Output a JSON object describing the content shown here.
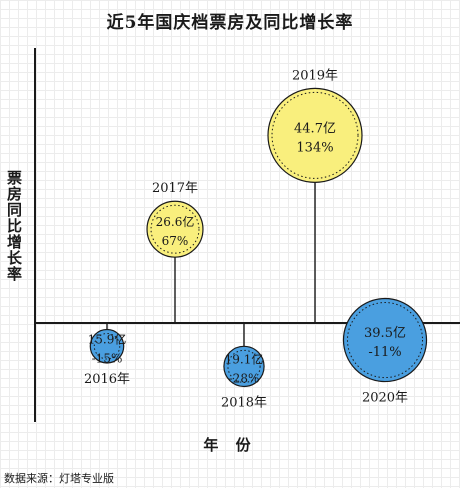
{
  "source": "数据来源：灯塔专业版",
  "chart_data": {
    "type": "bubble",
    "title": "近5年国庆档票房及同比增长率",
    "xlabel": "年 份",
    "ylabel": "票房同比增长率",
    "colors": {
      "positive": "#f9ef7d",
      "negative": "#4a9fe0",
      "outline": "#1a1a1a"
    },
    "points": [
      {
        "year": "2016年",
        "box_office": 15.9,
        "box_office_label": "15.9亿",
        "growth": -15,
        "growth_label": "-15%"
      },
      {
        "year": "2017年",
        "box_office": 26.6,
        "box_office_label": "26.6亿",
        "growth": 67,
        "growth_label": "67%"
      },
      {
        "year": "2018年",
        "box_office": 19.1,
        "box_office_label": "19.1亿",
        "growth": -28,
        "growth_label": "-28%"
      },
      {
        "year": "2019年",
        "box_office": 44.7,
        "box_office_label": "44.7亿",
        "growth": 134,
        "growth_label": "134%"
      },
      {
        "year": "2020年",
        "box_office": 39.5,
        "box_office_label": "39.5亿",
        "growth": -11,
        "growth_label": "-11%"
      }
    ]
  }
}
